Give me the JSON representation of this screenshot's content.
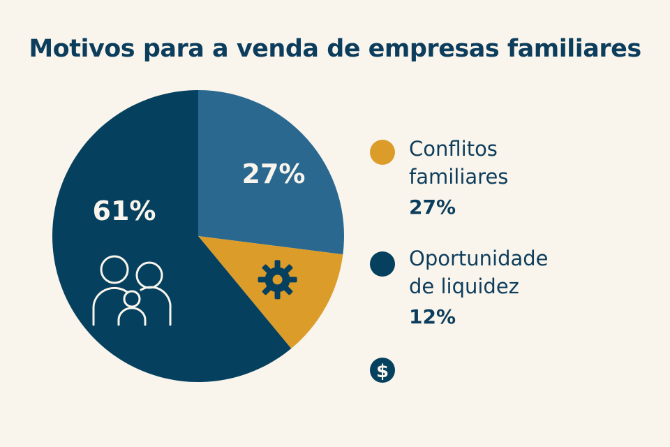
{
  "chart_data": {
    "type": "pie",
    "title": "Motivos para a venda de empresas familiares",
    "slices": [
      {
        "label": "27%",
        "value": 27,
        "color": "#2a6890",
        "icon": ""
      },
      {
        "label": "",
        "value": 12,
        "color": "#dc9c2a",
        "icon": "gear-icon"
      },
      {
        "label": "61%",
        "value": 61,
        "color": "#05405f",
        "icon": "family-icon"
      }
    ],
    "legend": [
      {
        "line1": "Conflitos",
        "line2": "familiares",
        "pct": "27%",
        "color": "#dc9c2a"
      },
      {
        "line1": "Oportunidade",
        "line2": "de liquidez",
        "pct": "12%",
        "color": "#05405f"
      }
    ],
    "extra_icon": "dollar-icon",
    "legend_placement": "right"
  }
}
